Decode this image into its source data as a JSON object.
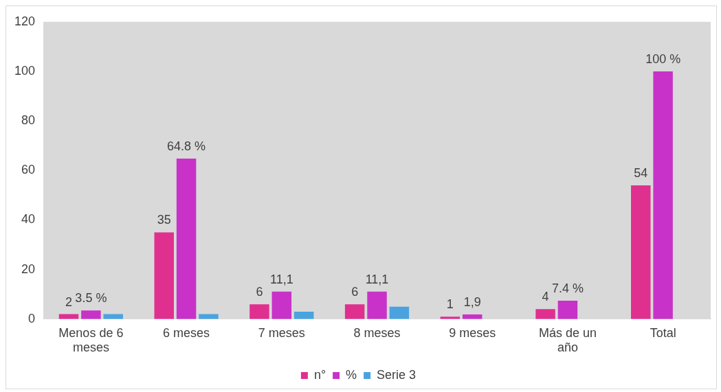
{
  "chart_data": {
    "type": "bar",
    "categories": [
      "Menos de 6 meses",
      "6 meses",
      "7 meses",
      "8 meses",
      "9 meses",
      "Más de un año",
      "Total"
    ],
    "series": [
      {
        "name": "n°",
        "color": "#e0308f",
        "values": [
          2,
          35,
          6,
          6,
          1,
          4,
          54
        ],
        "value_labels": [
          "2",
          "35",
          "6",
          "6",
          "1",
          "4",
          "54"
        ]
      },
      {
        "name": "%",
        "color": "#c832c8",
        "values": [
          3.5,
          64.8,
          11.1,
          11.1,
          1.9,
          7.4,
          100
        ],
        "value_labels": [
          "3.5 %",
          "64.8 %",
          "11,1",
          "11,1",
          "1,9",
          "7.4 %",
          "100 %"
        ]
      },
      {
        "name": "Serie 3",
        "color": "#4aa3df",
        "values": [
          2,
          2,
          3,
          5,
          null,
          null,
          null
        ]
      }
    ],
    "ylim": [
      0,
      120
    ],
    "yticks": [
      0,
      20,
      40,
      60,
      80,
      100,
      120
    ],
    "grid": false,
    "legend": "bottom"
  }
}
